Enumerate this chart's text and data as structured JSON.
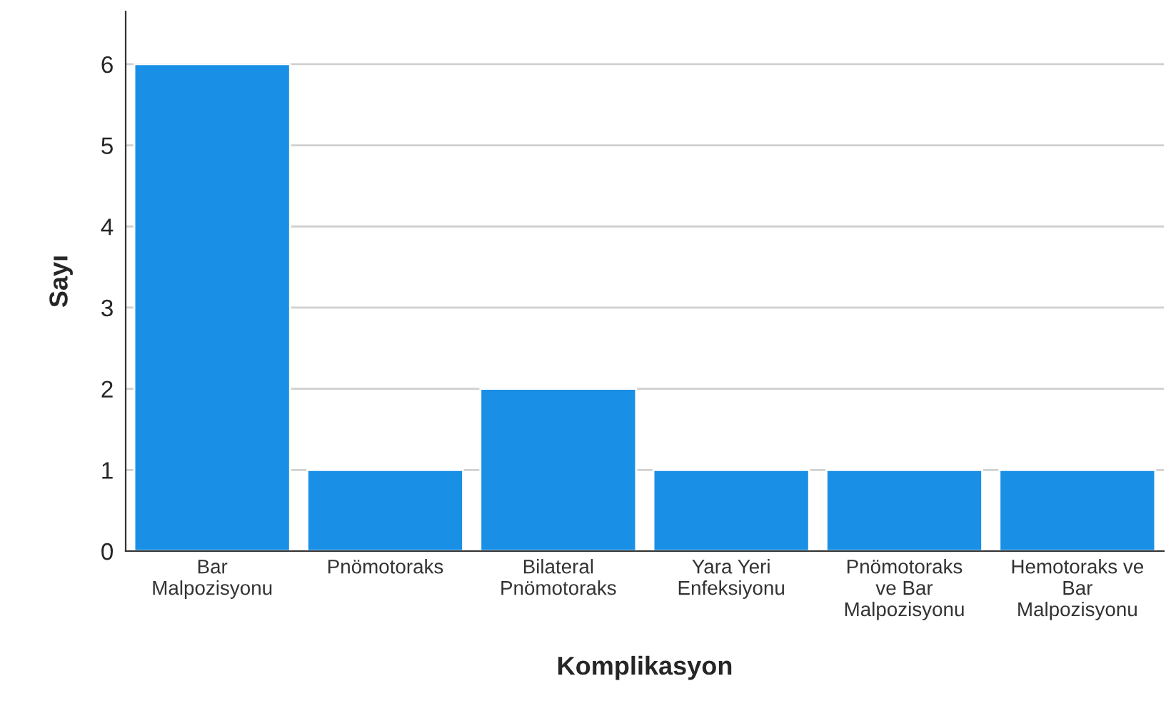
{
  "chart_data": {
    "type": "bar",
    "xlabel": "Komplikasyon",
    "ylabel": "Sayı",
    "categories": [
      "Bar\nMalpozisyonu",
      "Pnömotoraks",
      "Bilateral\nPnömotoraks",
      "Yara Yeri\nEnfeksiyonu",
      "Pnömotoraks\nve Bar\nMalpozisyonu",
      "Hemotoraks ve\nBar\nMalpozisyonu"
    ],
    "values": [
      6,
      1,
      2,
      1,
      1,
      1
    ],
    "color": "#1a8fe6",
    "ylim": [
      0,
      6.65
    ],
    "yticks": [
      0,
      1,
      2,
      3,
      4,
      5,
      6
    ],
    "grid": "y",
    "legend": false
  }
}
